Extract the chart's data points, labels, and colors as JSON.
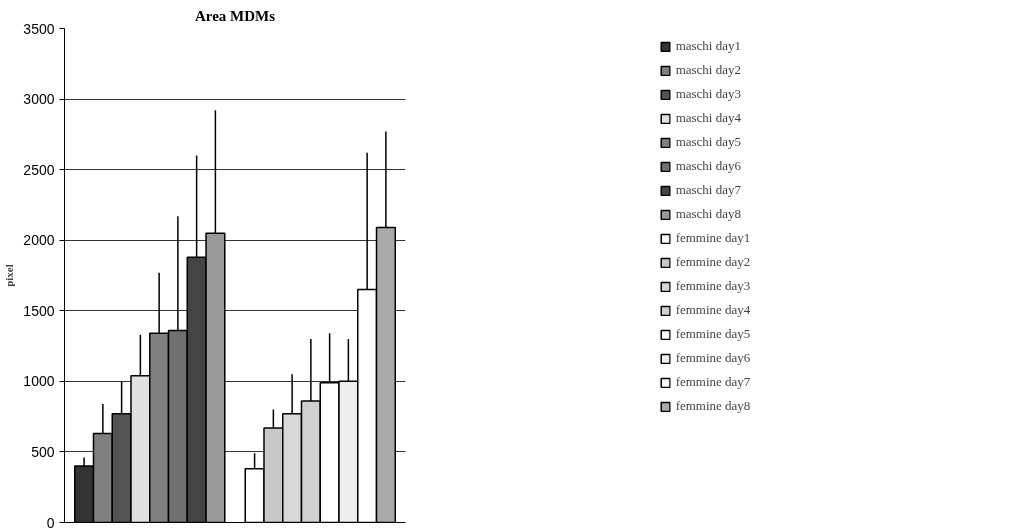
{
  "chart_data": {
    "type": "bar",
    "title": "Area MDMs",
    "ylabel": "pixel",
    "categories": [
      null,
      null
    ],
    "ylim": [
      0,
      3500
    ],
    "yticks": [
      0,
      500,
      1000,
      1500,
      2000,
      2500,
      3000,
      3500
    ],
    "grid": "y",
    "legend": "right",
    "series": [
      {
        "name": "maschi day1",
        "color": "#333333",
        "values": [
          400,
          null
        ],
        "errors": [
          [
            400,
            460
          ],
          null
        ]
      },
      {
        "name": "maschi day2",
        "color": "#808080",
        "values": [
          630,
          null
        ],
        "errors": [
          [
            630,
            840
          ],
          null
        ]
      },
      {
        "name": "maschi day3",
        "color": "#555555",
        "values": [
          770,
          null
        ],
        "errors": [
          [
            770,
            1000
          ],
          null
        ]
      },
      {
        "name": "maschi day4",
        "color": "#e0e0e0",
        "values": [
          1040,
          null
        ],
        "errors": [
          [
            1040,
            1330
          ],
          null
        ]
      },
      {
        "name": "maschi day5",
        "color": "#808080",
        "values": [
          1340,
          null
        ],
        "errors": [
          [
            1340,
            1770
          ],
          null
        ]
      },
      {
        "name": "maschi day6",
        "color": "#707070",
        "values": [
          1360,
          null
        ],
        "errors": [
          [
            1360,
            2170
          ],
          null
        ]
      },
      {
        "name": "maschi day7",
        "color": "#444444",
        "values": [
          1880,
          null
        ],
        "errors": [
          [
            1880,
            2600
          ],
          null
        ]
      },
      {
        "name": "maschi day8",
        "color": "#999999",
        "values": [
          2050,
          null
        ],
        "errors": [
          [
            2050,
            2920
          ],
          null
        ]
      },
      {
        "name": "femmine day1",
        "color": "#ffffff",
        "values": [
          null,
          380
        ],
        "errors": [
          null,
          [
            380,
            490
          ]
        ]
      },
      {
        "name": "femmine day2",
        "color": "#c8c8c8",
        "values": [
          null,
          670
        ],
        "errors": [
          null,
          [
            670,
            800
          ]
        ]
      },
      {
        "name": "femmine day3",
        "color": "#d8d8d8",
        "values": [
          null,
          770
        ],
        "errors": [
          null,
          [
            770,
            1050
          ]
        ]
      },
      {
        "name": "femmine day4",
        "color": "#d0d0d0",
        "values": [
          null,
          860
        ],
        "errors": [
          null,
          [
            860,
            1300
          ]
        ]
      },
      {
        "name": "femmine day5",
        "color": "#ffffff",
        "values": [
          null,
          990
        ],
        "errors": [
          null,
          [
            990,
            1340
          ]
        ]
      },
      {
        "name": "femmine day6",
        "color": "#eeeeee",
        "values": [
          null,
          1000
        ],
        "errors": [
          null,
          [
            1000,
            1300
          ]
        ]
      },
      {
        "name": "femmine day7",
        "color": "#ffffff",
        "values": [
          null,
          1650
        ],
        "errors": [
          null,
          [
            1650,
            2620
          ]
        ]
      },
      {
        "name": "femmine day8",
        "color": "#aaaaaa",
        "values": [
          null,
          2090
        ],
        "errors": [
          null,
          [
            2090,
            2770
          ]
        ]
      }
    ]
  }
}
